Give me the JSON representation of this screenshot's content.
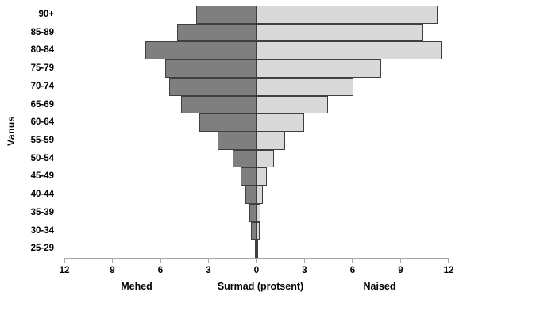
{
  "chart_data": {
    "type": "bar",
    "subtype": "population_pyramid",
    "orientation": "horizontal",
    "title": "",
    "ylabel": "Vanus",
    "xlabel": "Surmad (protsent)",
    "left_side_label": "Mehed",
    "right_side_label": "Naised",
    "categories_top_to_bottom": [
      "90+",
      "85-89",
      "80-84",
      "75-79",
      "70-74",
      "65-69",
      "60-64",
      "55-59",
      "50-54",
      "45-49",
      "40-44",
      "35-39",
      "30-34",
      "25-29"
    ],
    "series": [
      {
        "name": "Mehed",
        "side": "left",
        "fill": "#7f7f7f",
        "values": [
          3.75,
          4.95,
          6.95,
          5.7,
          5.45,
          4.7,
          3.55,
          2.43,
          1.48,
          1.0,
          0.7,
          0.45,
          0.33,
          0.12
        ]
      },
      {
        "name": "Naised",
        "side": "right",
        "fill": "#d9d9d9",
        "values": [
          11.3,
          10.4,
          11.55,
          7.8,
          6.05,
          4.45,
          2.98,
          1.8,
          1.08,
          0.65,
          0.4,
          0.27,
          0.2,
          0.12
        ]
      }
    ],
    "x_axis": {
      "max_each_side": 12,
      "tick_step": 3,
      "tick_labels": [
        "12",
        "9",
        "6",
        "3",
        "0",
        "3",
        "6",
        "9",
        "12"
      ],
      "grid": false
    },
    "legend": "none",
    "colors": {
      "bar_border": "#3f3f3f",
      "axis_line": "#a6a6a6",
      "text": "#000000",
      "background": "#ffffff"
    }
  }
}
